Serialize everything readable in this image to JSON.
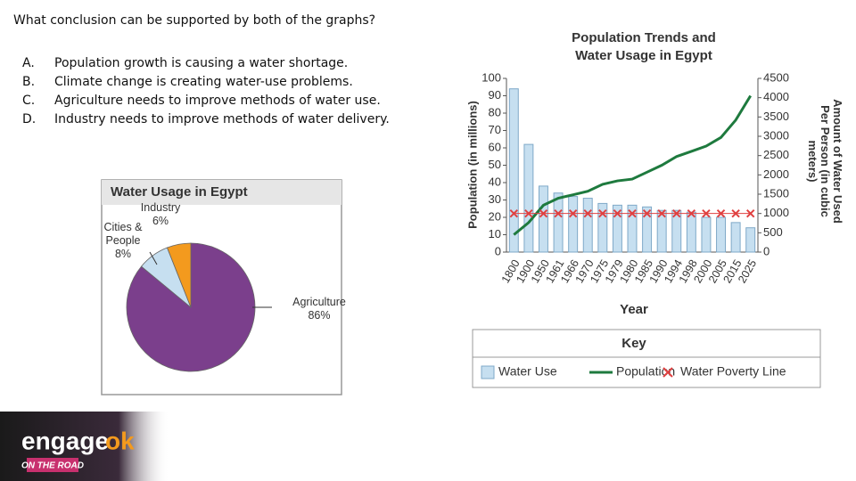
{
  "question": "What conclusion can be supported by both of the graphs?",
  "options": [
    {
      "letter": "A.",
      "text": "Population growth is causing a water shortage."
    },
    {
      "letter": "B.",
      "text": "Climate change is creating water-use problems."
    },
    {
      "letter": "C.",
      "text": "Agriculture needs to improve methods of water use."
    },
    {
      "letter": "D.",
      "text": "Industry needs to improve methods of water delivery."
    }
  ],
  "logo": {
    "word": "engage",
    "accent": "ok",
    "tagline": "ON THE ROAD"
  },
  "chart_data": [
    {
      "type": "pie",
      "title": "Water Usage in Egypt",
      "categories": [
        "Agriculture",
        "Cities & People",
        "Industry"
      ],
      "values": [
        86,
        8,
        6
      ],
      "value_labels": [
        "86%",
        "8%",
        "6%"
      ],
      "colors": [
        "#7b3f8c",
        "#c6dff0",
        "#f39a1e"
      ]
    },
    {
      "type": "combo",
      "title": "Population Trends and Water Usage in Egypt",
      "x_label": "Year",
      "y_label": "Population (in millions)",
      "y2_label": "Amount of Water Used Per Person (in cubic meters)",
      "legend_title": "Key",
      "categories": [
        "1800",
        "1900",
        "1950",
        "1961",
        "1966",
        "1970",
        "1975",
        "1979",
        "1980",
        "1985",
        "1990",
        "1994",
        "1998",
        "2000",
        "2005",
        "2015",
        "2025"
      ],
      "ylim": [
        0,
        100
      ],
      "yticks": [
        0,
        10,
        20,
        30,
        40,
        50,
        60,
        70,
        80,
        90,
        100
      ],
      "y2lim": [
        0,
        4500
      ],
      "y2ticks": [
        0,
        500,
        1000,
        1500,
        2000,
        2500,
        3000,
        3500,
        4000,
        4500
      ],
      "series": [
        {
          "name": "Water Use",
          "type": "bar",
          "axis": "y2",
          "color": "#c6dff0",
          "values": [
            4230,
            2790,
            1710,
            1530,
            1440,
            1395,
            1260,
            1215,
            1215,
            1170,
            1080,
            1080,
            1035,
            900,
            900,
            765,
            630
          ]
        },
        {
          "name": "Population",
          "type": "line",
          "color": "#1e7a3e",
          "values": [
            10,
            17,
            27,
            31,
            33,
            35,
            39,
            41,
            42,
            46,
            50,
            55,
            58,
            61,
            66,
            76,
            90
          ]
        },
        {
          "name": "Water Poverty Line",
          "type": "marker",
          "axis": "y2",
          "color": "#e04040",
          "values": [
            1000,
            1000,
            1000,
            1000,
            1000,
            1000,
            1000,
            1000,
            1000,
            1000,
            1000,
            1000,
            1000,
            1000,
            1000,
            1000,
            1000
          ]
        }
      ]
    }
  ]
}
